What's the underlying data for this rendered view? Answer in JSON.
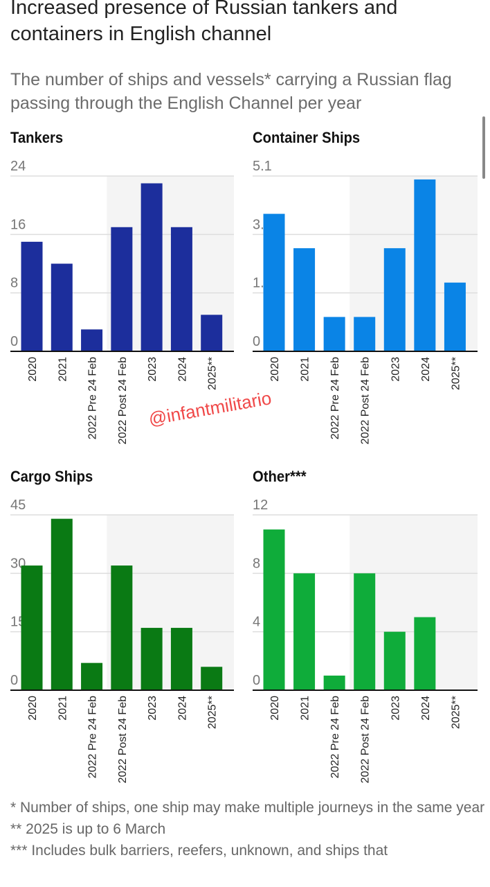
{
  "title": "Increased presence of Russian tankers and containers in English channel",
  "subtitle": "The number of ships and vessels* carrying a Russian flag passing through the English Channel per year",
  "watermark": "@infantmilitario",
  "footnotes": [
    "* Number of ships, one ship may make multiple journeys in the same year",
    "** 2025 is up to 6 March",
    "*** Includes bulk barriers, reefers, unknown, and ships that"
  ],
  "chart_data": [
    {
      "type": "bar",
      "title": "Tankers",
      "categories": [
        "2020",
        "2021",
        "2022 Pre 24 Feb",
        "2022 Post 24 Feb",
        "2023",
        "2024",
        "2025**"
      ],
      "values": [
        15,
        12,
        3,
        17,
        23,
        17,
        5
      ],
      "yticks": [
        "0",
        "8",
        "16",
        "24"
      ],
      "ylim": [
        0,
        24
      ],
      "color": "#1c2e9c",
      "shaded_from": "2022 Post 24 Feb"
    },
    {
      "type": "bar",
      "title": "Container Ships",
      "categories": [
        "2020",
        "2021",
        "2022 Pre 24 Feb",
        "2022 Post 24 Feb",
        "2023",
        "2024",
        "2025**"
      ],
      "values": [
        4,
        3,
        1,
        1,
        3,
        5,
        2
      ],
      "yticks": [
        "0",
        "1.7",
        "3.4",
        "5.1"
      ],
      "ylim": [
        0,
        5.1
      ],
      "color": "#0a84e6",
      "shaded_from": "2022 Post 24 Feb"
    },
    {
      "type": "bar",
      "title": "Cargo Ships",
      "categories": [
        "2020",
        "2021",
        "2022 Pre 24 Feb",
        "2022 Post 24 Feb",
        "2023",
        "2024",
        "2025**"
      ],
      "values": [
        32,
        44,
        7,
        32,
        16,
        16,
        6
      ],
      "yticks": [
        "0",
        "15",
        "30",
        "45"
      ],
      "ylim": [
        0,
        45
      ],
      "color": "#0a7a14",
      "shaded_from": "2022 Post 24 Feb"
    },
    {
      "type": "bar",
      "title": "Other***",
      "categories": [
        "2020",
        "2021",
        "2022 Pre 24 Feb",
        "2022 Post 24 Feb",
        "2023",
        "2024",
        "2025**"
      ],
      "values": [
        11,
        8,
        1,
        8,
        4,
        5,
        0
      ],
      "yticks": [
        "0",
        "4",
        "8",
        "12"
      ],
      "ylim": [
        0,
        12
      ],
      "color": "#0fac3a",
      "shaded_from": "2022 Post 24 Feb"
    }
  ]
}
